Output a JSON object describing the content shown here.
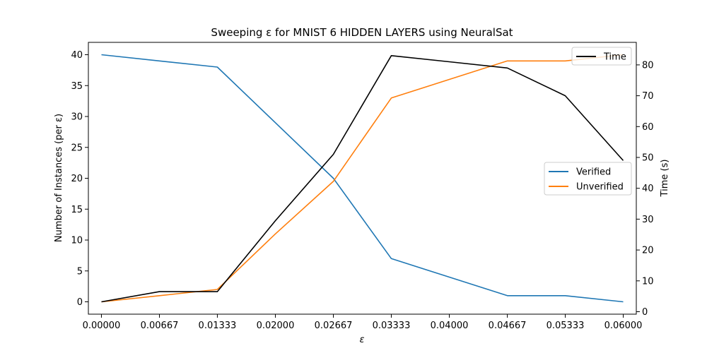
{
  "chart_data": {
    "type": "line",
    "title": "Sweeping ε for MNIST 6 HIDDEN LAYERS using NeuralSat",
    "xlabel": "ε",
    "ylabel": "Number of Instances (per ε)",
    "ylabel_right": "Time (s)",
    "x": [
      0.0,
      0.00667,
      0.01333,
      0.02,
      0.02667,
      0.03333,
      0.04,
      0.04667,
      0.05333,
      0.06
    ],
    "x_tick_labels": [
      "0.00000",
      "0.00667",
      "0.01333",
      "0.02000",
      "0.02667",
      "0.03333",
      "0.04000",
      "0.04667",
      "0.05333",
      "0.06000"
    ],
    "xlim": [
      -0.0015,
      0.0615
    ],
    "ylim": [
      -2,
      42
    ],
    "y_ticks": [
      0,
      5,
      10,
      15,
      20,
      25,
      30,
      35,
      40
    ],
    "ylim_right": [
      -0.8,
      87.3
    ],
    "y_ticks_right": [
      0,
      10,
      20,
      30,
      40,
      50,
      60,
      70,
      80
    ],
    "grid": false,
    "series": [
      {
        "name": "Verified",
        "axis": "left",
        "color": "#1f77b4",
        "values": [
          40,
          39,
          38,
          29,
          20,
          7,
          4,
          1,
          1,
          0
        ]
      },
      {
        "name": "Unverified",
        "axis": "left",
        "color": "#ff7f0e",
        "values": [
          0,
          1,
          2,
          11,
          19.5,
          33,
          36,
          39,
          39,
          40
        ]
      },
      {
        "name": "Time",
        "axis": "right",
        "color": "#000000",
        "values": [
          3.2,
          6.5,
          6.5,
          29.5,
          51,
          83,
          81,
          79,
          70,
          49
        ]
      }
    ],
    "legends": [
      {
        "placement": "top-right",
        "entries": [
          "Time"
        ]
      },
      {
        "placement": "center-right",
        "entries": [
          "Verified",
          "Unverified"
        ]
      }
    ]
  }
}
